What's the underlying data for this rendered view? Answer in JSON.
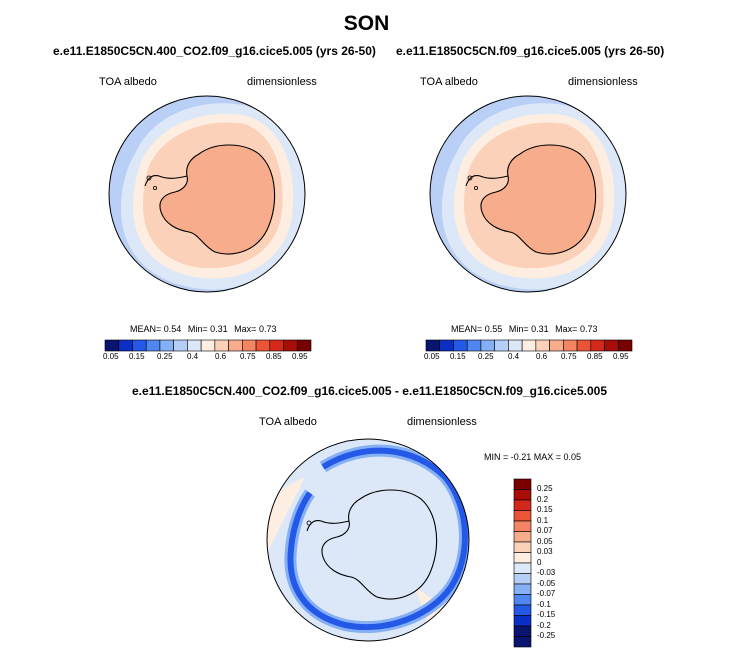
{
  "title": "SON",
  "panels": [
    {
      "case": "e.e11.E1850C5CN.400_CO2.f09_g16.cice5.005 (yrs 26-50)",
      "variable": "TOA albedo",
      "units": "dimensionless",
      "mean_label": "MEAN=",
      "mean_value": "0.54",
      "min_label": "Min=",
      "min_value": "0.31",
      "max_label": "Max=",
      "max_value": "0.73"
    },
    {
      "case": "e.e11.E1850C5CN.f09_g16.cice5.005 (yrs 26-50)",
      "variable": "TOA albedo",
      "units": "dimensionless",
      "mean_label": "MEAN=",
      "mean_value": "0.55",
      "min_label": "Min=",
      "min_value": "0.31",
      "max_label": "Max=",
      "max_value": "0.73"
    }
  ],
  "colorbar_top": {
    "ticks": [
      "0.05",
      "0.15",
      "0.25",
      "0.4",
      "0.6",
      "0.75",
      "0.85",
      "0.95"
    ],
    "colors": [
      "#08146e",
      "#0b2fc6",
      "#2459e8",
      "#4f86f0",
      "#86b0f5",
      "#b5cff7",
      "#dce8f7",
      "#fdeee1",
      "#fbd1ba",
      "#f7ac8b",
      "#f38562",
      "#ea5437",
      "#d4281a",
      "#a70e07",
      "#780000"
    ]
  },
  "diff_panel": {
    "title": "e.e11.E1850C5CN.400_CO2.f09_g16.cice5.005 - e.e11.E1850C5CN.f09_g16.cice5.005",
    "variable": "TOA albedo",
    "units": "dimensionless",
    "minmax": "MIN =  -0.21 MAX =  0.05"
  },
  "colorbar_diff": {
    "labels": [
      "0.25",
      "0.2",
      "0.15",
      "0.1",
      "0.07",
      "0.05",
      "0.03",
      "0",
      "-0.03",
      "-0.05",
      "-0.07",
      "-0.1",
      "-0.15",
      "-0.2",
      "-0.25"
    ],
    "colors": [
      "#7a0000",
      "#a80e07",
      "#d4281a",
      "#ea5437",
      "#f38562",
      "#f7ac8b",
      "#fbd1ba",
      "#fdeee1",
      "#dce8f7",
      "#b5cff7",
      "#86b0f5",
      "#4f86f0",
      "#2459e8",
      "#0b2fc6",
      "#08146e",
      "#08146e"
    ]
  },
  "map_colors": {
    "ocean_low": "#b9cff6",
    "ocean_band": "#dce8f7",
    "ring_pale": "#fdeee1",
    "ring_peach": "#fbd1ba",
    "interior": "#f7ac8b",
    "diff_background": "#dce8f7",
    "diff_ring_peach": "#fdeee1",
    "diff_blue": "#2459e8",
    "diff_light_blue": "#86b0f5"
  }
}
